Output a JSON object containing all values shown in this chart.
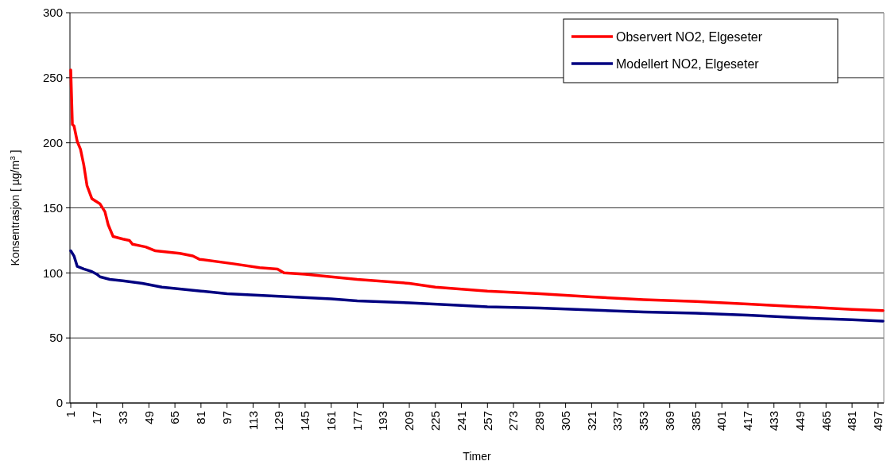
{
  "chart_data": {
    "type": "line",
    "xlabel": "Timer",
    "ylabel": "Konsentrasjon [ µg/m$^{3}$ ]",
    "xlim": [
      0.5,
      500.5
    ],
    "xticks": [
      1,
      17,
      33,
      49,
      65,
      81,
      97,
      113,
      129,
      145,
      161,
      177,
      193,
      209,
      225,
      241,
      257,
      273,
      289,
      305,
      321,
      337,
      353,
      369,
      385,
      401,
      417,
      433,
      449,
      465,
      481,
      497
    ],
    "ylim": [
      0,
      300
    ],
    "yticks": [
      0,
      50,
      100,
      150,
      200,
      250,
      300
    ],
    "grid": "y",
    "legend": "top right",
    "line_style": "solid",
    "marker": "none",
    "series": [
      {
        "name": "Observert NO2, Elgeseter",
        "color": "#ff0000",
        "x": [
          1,
          2,
          3,
          5,
          7,
          9,
          11,
          14,
          19,
          22,
          24,
          27,
          33,
          37,
          39,
          47,
          53,
          68,
          76,
          80,
          101,
          117,
          128,
          132,
          145,
          161,
          177,
          209,
          225,
          257,
          289,
          321,
          353,
          385,
          417,
          449,
          481,
          500
        ],
        "values": [
          256,
          214,
          213,
          201,
          195,
          183,
          167,
          157,
          153,
          147,
          137,
          128,
          126,
          125,
          122,
          120,
          117,
          115,
          113,
          110.5,
          107,
          104,
          103,
          100,
          99,
          97,
          95,
          92,
          89,
          86,
          84,
          81.5,
          79.5,
          78,
          76,
          74,
          72,
          71
        ]
      },
      {
        "name": "Modellert NO2, Elgeseter",
        "color": "#000080",
        "x": [
          1,
          3,
          5,
          9,
          14,
          17,
          19,
          25,
          33,
          45,
          57,
          81,
          97,
          129,
          161,
          177,
          209,
          241,
          257,
          289,
          321,
          353,
          385,
          417,
          449,
          481,
          500
        ],
        "values": [
          117,
          113,
          105,
          103,
          101,
          99,
          97,
          95,
          94,
          92,
          89,
          86,
          84,
          82,
          80,
          78.5,
          77,
          75,
          74,
          73,
          71.5,
          70,
          69,
          67.5,
          65.5,
          64,
          63
        ]
      }
    ]
  }
}
